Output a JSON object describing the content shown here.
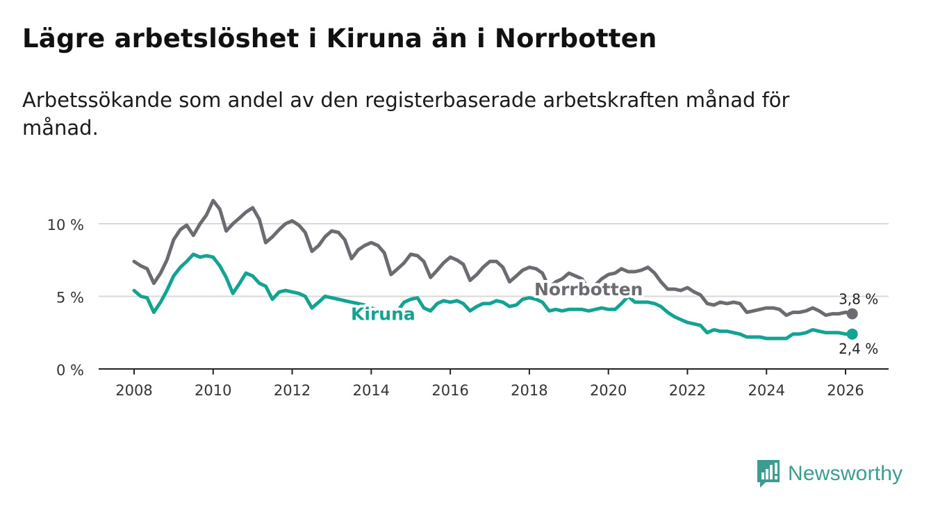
{
  "title": "Lägre arbetslöshet i Kiruna än i Norrbotten",
  "subtitle": "Arbetssökande som andel av den registerbaserade arbetskraften månad för månad.",
  "brand": {
    "name": "Newsworthy",
    "icon": "newsworthy-logo-icon",
    "color": "#3a9c93"
  },
  "chart_data": {
    "type": "line",
    "title": "Lägre arbetslöshet i Kiruna än i Norrbotten",
    "xlabel": "",
    "ylabel": "",
    "xlim": [
      2007.2,
      2027.0
    ],
    "ylim": [
      0,
      12
    ],
    "x_ticks": [
      2008,
      2010,
      2012,
      2014,
      2016,
      2018,
      2020,
      2022,
      2024,
      2026
    ],
    "x_tick_labels": [
      "2008",
      "2010",
      "2012",
      "2014",
      "2016",
      "2018",
      "2020",
      "2022",
      "2024",
      "2026"
    ],
    "y_ticks": [
      0,
      5,
      10
    ],
    "y_tick_labels": [
      "0 %",
      "5 %",
      "10 %"
    ],
    "grid": true,
    "series": [
      {
        "name": "Norrbotten",
        "color": "#6b6b72",
        "label_at": 2019.5,
        "end_label": "3,8 %",
        "points": [
          [
            2008.0,
            7.4
          ],
          [
            2008.17,
            7.1
          ],
          [
            2008.33,
            6.9
          ],
          [
            2008.5,
            5.9
          ],
          [
            2008.67,
            6.6
          ],
          [
            2008.83,
            7.5
          ],
          [
            2009.0,
            8.9
          ],
          [
            2009.17,
            9.6
          ],
          [
            2009.33,
            9.9
          ],
          [
            2009.5,
            9.2
          ],
          [
            2009.67,
            10.0
          ],
          [
            2009.83,
            10.6
          ],
          [
            2010.0,
            11.6
          ],
          [
            2010.17,
            11.0
          ],
          [
            2010.33,
            9.5
          ],
          [
            2010.5,
            10.0
          ],
          [
            2010.67,
            10.4
          ],
          [
            2010.83,
            10.8
          ],
          [
            2011.0,
            11.1
          ],
          [
            2011.17,
            10.3
          ],
          [
            2011.33,
            8.7
          ],
          [
            2011.5,
            9.1
          ],
          [
            2011.67,
            9.6
          ],
          [
            2011.83,
            10.0
          ],
          [
            2012.0,
            10.2
          ],
          [
            2012.17,
            9.9
          ],
          [
            2012.33,
            9.4
          ],
          [
            2012.5,
            8.1
          ],
          [
            2012.67,
            8.5
          ],
          [
            2012.83,
            9.1
          ],
          [
            2013.0,
            9.5
          ],
          [
            2013.17,
            9.4
          ],
          [
            2013.33,
            8.9
          ],
          [
            2013.5,
            7.6
          ],
          [
            2013.67,
            8.2
          ],
          [
            2013.83,
            8.5
          ],
          [
            2014.0,
            8.7
          ],
          [
            2014.17,
            8.5
          ],
          [
            2014.33,
            8.0
          ],
          [
            2014.5,
            6.5
          ],
          [
            2014.67,
            6.9
          ],
          [
            2014.83,
            7.3
          ],
          [
            2015.0,
            7.9
          ],
          [
            2015.17,
            7.8
          ],
          [
            2015.33,
            7.4
          ],
          [
            2015.5,
            6.3
          ],
          [
            2015.67,
            6.8
          ],
          [
            2015.83,
            7.3
          ],
          [
            2016.0,
            7.7
          ],
          [
            2016.17,
            7.5
          ],
          [
            2016.33,
            7.2
          ],
          [
            2016.5,
            6.1
          ],
          [
            2016.67,
            6.5
          ],
          [
            2016.83,
            7.0
          ],
          [
            2017.0,
            7.4
          ],
          [
            2017.17,
            7.4
          ],
          [
            2017.33,
            7.0
          ],
          [
            2017.5,
            6.0
          ],
          [
            2017.67,
            6.4
          ],
          [
            2017.83,
            6.8
          ],
          [
            2018.0,
            7.0
          ],
          [
            2018.17,
            6.9
          ],
          [
            2018.33,
            6.6
          ],
          [
            2018.5,
            5.6
          ],
          [
            2018.67,
            6.0
          ],
          [
            2018.83,
            6.2
          ],
          [
            2019.0,
            6.6
          ],
          [
            2019.17,
            6.4
          ],
          [
            2019.33,
            6.2
          ],
          [
            2019.5,
            5.5
          ],
          [
            2019.67,
            5.8
          ],
          [
            2019.83,
            6.2
          ],
          [
            2020.0,
            6.5
          ],
          [
            2020.17,
            6.6
          ],
          [
            2020.33,
            6.9
          ],
          [
            2020.5,
            6.7
          ],
          [
            2020.67,
            6.7
          ],
          [
            2020.83,
            6.8
          ],
          [
            2021.0,
            7.0
          ],
          [
            2021.17,
            6.6
          ],
          [
            2021.33,
            6.0
          ],
          [
            2021.5,
            5.5
          ],
          [
            2021.67,
            5.5
          ],
          [
            2021.83,
            5.4
          ],
          [
            2022.0,
            5.6
          ],
          [
            2022.17,
            5.3
          ],
          [
            2022.33,
            5.1
          ],
          [
            2022.5,
            4.5
          ],
          [
            2022.67,
            4.4
          ],
          [
            2022.83,
            4.6
          ],
          [
            2023.0,
            4.5
          ],
          [
            2023.17,
            4.6
          ],
          [
            2023.33,
            4.5
          ],
          [
            2023.5,
            3.9
          ],
          [
            2023.67,
            4.0
          ],
          [
            2023.83,
            4.1
          ],
          [
            2024.0,
            4.2
          ],
          [
            2024.17,
            4.2
          ],
          [
            2024.33,
            4.1
          ],
          [
            2024.5,
            3.7
          ],
          [
            2024.67,
            3.9
          ],
          [
            2024.83,
            3.9
          ],
          [
            2025.0,
            4.0
          ],
          [
            2025.17,
            4.2
          ],
          [
            2025.33,
            4.0
          ],
          [
            2025.5,
            3.7
          ],
          [
            2025.67,
            3.8
          ],
          [
            2025.83,
            3.8
          ],
          [
            2026.0,
            3.9
          ],
          [
            2026.17,
            3.8
          ]
        ]
      },
      {
        "name": "Kiruna",
        "color": "#14a393",
        "label_at": 2014.3,
        "end_label": "2,4 %",
        "points": [
          [
            2008.0,
            5.4
          ],
          [
            2008.17,
            5.0
          ],
          [
            2008.33,
            4.9
          ],
          [
            2008.5,
            3.9
          ],
          [
            2008.67,
            4.6
          ],
          [
            2008.83,
            5.4
          ],
          [
            2009.0,
            6.4
          ],
          [
            2009.17,
            7.0
          ],
          [
            2009.33,
            7.4
          ],
          [
            2009.5,
            7.9
          ],
          [
            2009.67,
            7.7
          ],
          [
            2009.83,
            7.8
          ],
          [
            2010.0,
            7.7
          ],
          [
            2010.17,
            7.1
          ],
          [
            2010.33,
            6.3
          ],
          [
            2010.5,
            5.2
          ],
          [
            2010.67,
            5.9
          ],
          [
            2010.83,
            6.6
          ],
          [
            2011.0,
            6.4
          ],
          [
            2011.17,
            5.9
          ],
          [
            2011.33,
            5.7
          ],
          [
            2011.5,
            4.8
          ],
          [
            2011.67,
            5.3
          ],
          [
            2011.83,
            5.4
          ],
          [
            2012.0,
            5.3
          ],
          [
            2012.17,
            5.2
          ],
          [
            2012.33,
            5.0
          ],
          [
            2012.5,
            4.2
          ],
          [
            2012.67,
            4.6
          ],
          [
            2012.83,
            5.0
          ],
          [
            2013.0,
            4.9
          ],
          [
            2013.17,
            4.8
          ],
          [
            2013.33,
            4.7
          ],
          [
            2013.5,
            4.6
          ],
          [
            2013.67,
            4.5
          ],
          [
            2013.83,
            4.4
          ],
          [
            2014.0,
            4.2
          ],
          [
            2014.17,
            4.0
          ],
          [
            2014.33,
            3.8
          ],
          [
            2014.5,
            3.6
          ],
          [
            2014.67,
            4.0
          ],
          [
            2014.83,
            4.6
          ],
          [
            2015.0,
            4.8
          ],
          [
            2015.17,
            4.9
          ],
          [
            2015.33,
            4.2
          ],
          [
            2015.5,
            4.0
          ],
          [
            2015.67,
            4.5
          ],
          [
            2015.83,
            4.7
          ],
          [
            2016.0,
            4.6
          ],
          [
            2016.17,
            4.7
          ],
          [
            2016.33,
            4.5
          ],
          [
            2016.5,
            4.0
          ],
          [
            2016.67,
            4.3
          ],
          [
            2016.83,
            4.5
          ],
          [
            2017.0,
            4.5
          ],
          [
            2017.17,
            4.7
          ],
          [
            2017.33,
            4.6
          ],
          [
            2017.5,
            4.3
          ],
          [
            2017.67,
            4.4
          ],
          [
            2017.83,
            4.8
          ],
          [
            2018.0,
            4.9
          ],
          [
            2018.17,
            4.8
          ],
          [
            2018.33,
            4.6
          ],
          [
            2018.5,
            4.0
          ],
          [
            2018.67,
            4.1
          ],
          [
            2018.83,
            4.0
          ],
          [
            2019.0,
            4.1
          ],
          [
            2019.17,
            4.1
          ],
          [
            2019.33,
            4.1
          ],
          [
            2019.5,
            4.0
          ],
          [
            2019.67,
            4.1
          ],
          [
            2019.83,
            4.2
          ],
          [
            2020.0,
            4.1
          ],
          [
            2020.17,
            4.1
          ],
          [
            2020.33,
            4.5
          ],
          [
            2020.5,
            5.0
          ],
          [
            2020.67,
            4.6
          ],
          [
            2020.83,
            4.6
          ],
          [
            2021.0,
            4.6
          ],
          [
            2021.17,
            4.5
          ],
          [
            2021.33,
            4.3
          ],
          [
            2021.5,
            3.9
          ],
          [
            2021.67,
            3.6
          ],
          [
            2021.83,
            3.4
          ],
          [
            2022.0,
            3.2
          ],
          [
            2022.17,
            3.1
          ],
          [
            2022.33,
            3.0
          ],
          [
            2022.5,
            2.5
          ],
          [
            2022.67,
            2.7
          ],
          [
            2022.83,
            2.6
          ],
          [
            2023.0,
            2.6
          ],
          [
            2023.17,
            2.5
          ],
          [
            2023.33,
            2.4
          ],
          [
            2023.5,
            2.2
          ],
          [
            2023.67,
            2.2
          ],
          [
            2023.83,
            2.2
          ],
          [
            2024.0,
            2.1
          ],
          [
            2024.17,
            2.1
          ],
          [
            2024.33,
            2.1
          ],
          [
            2024.5,
            2.1
          ],
          [
            2024.67,
            2.4
          ],
          [
            2024.83,
            2.4
          ],
          [
            2025.0,
            2.5
          ],
          [
            2025.17,
            2.7
          ],
          [
            2025.33,
            2.6
          ],
          [
            2025.5,
            2.5
          ],
          [
            2025.67,
            2.5
          ],
          [
            2025.83,
            2.5
          ],
          [
            2026.0,
            2.4
          ],
          [
            2026.17,
            2.4
          ]
        ]
      }
    ]
  }
}
